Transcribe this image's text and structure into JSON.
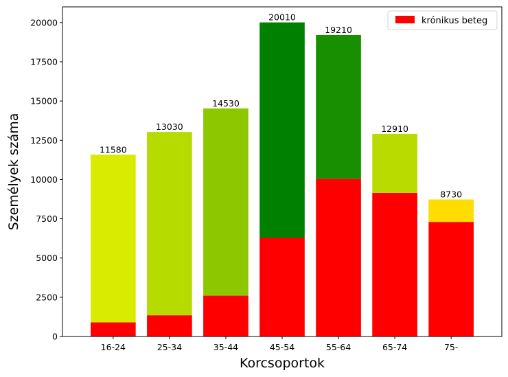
{
  "chart_data": {
    "type": "bar",
    "stacked": true,
    "xlabel": "Korcsoportok",
    "ylabel": "Személyek száma",
    "ylim": [
      0,
      21000
    ],
    "yticks": [
      0,
      2500,
      5000,
      7500,
      10000,
      12500,
      15000,
      17500,
      20000
    ],
    "grid": false,
    "legend_position": "top-right",
    "categories": [
      "16-24",
      "25-34",
      "35-44",
      "45-54",
      "55-64",
      "65-74",
      "75-"
    ],
    "series": [
      {
        "name": "krónikus beteg",
        "color": "#ff0000",
        "values": [
          900,
          1350,
          2600,
          6300,
          10050,
          9150,
          7300
        ]
      },
      {
        "values": [
          10680,
          11680,
          11930,
          13710,
          9160,
          3760,
          1430
        ],
        "colors": [
          "#d8eb00",
          "#b5db00",
          "#8cc700",
          "#008000",
          "#178f00",
          "#badb00",
          "#ffdd00"
        ]
      }
    ],
    "totals": [
      "11580",
      "13030",
      "14530",
      "20010",
      "19210",
      "12910",
      "8730"
    ]
  }
}
